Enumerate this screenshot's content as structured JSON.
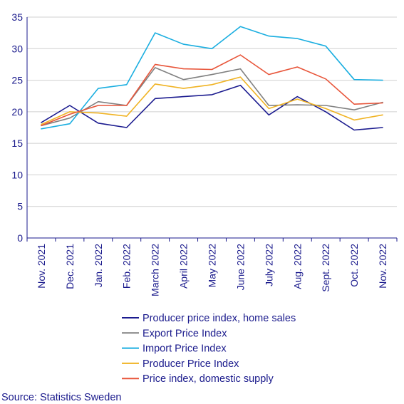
{
  "chart_data": {
    "type": "line",
    "title": "",
    "xlabel": "",
    "ylabel": "",
    "ylim": [
      0,
      35
    ],
    "yticks": [
      0,
      5,
      10,
      15,
      20,
      25,
      30,
      35
    ],
    "grid": true,
    "legend_position": "bottom",
    "categories": [
      "Nov. 2021",
      "Dec. 2021",
      "Jan. 2022",
      "Feb. 2022",
      "March 2022",
      "April 2022",
      "May 2022",
      "June 2022",
      "July 2022",
      "Aug. 2022",
      "Sept. 2022",
      "Oct. 2022",
      "Nov. 2022"
    ],
    "series": [
      {
        "name": "Producer price index, home sales",
        "color": "#1b1b8f",
        "values": [
          18.3,
          21.0,
          18.2,
          17.5,
          22.1,
          22.4,
          22.7,
          24.2,
          19.5,
          22.4,
          20.0,
          17.1,
          17.5
        ]
      },
      {
        "name": "Export Price Index",
        "color": "#808080",
        "values": [
          17.8,
          19.0,
          21.6,
          21.0,
          27.0,
          25.1,
          25.9,
          26.8,
          21.0,
          21.1,
          21.0,
          20.3,
          21.5
        ]
      },
      {
        "name": "Import Price Index",
        "color": "#1aaee0",
        "values": [
          17.3,
          18.1,
          23.7,
          24.3,
          32.5,
          30.7,
          30.0,
          33.5,
          32.0,
          31.6,
          30.4,
          25.1,
          25.0
        ]
      },
      {
        "name": "Producer Price Index",
        "color": "#f0b323",
        "values": [
          18.0,
          20.0,
          19.8,
          19.3,
          24.4,
          23.7,
          24.3,
          25.5,
          20.5,
          22.0,
          20.5,
          18.7,
          19.5
        ]
      },
      {
        "name": "Price index, domestic supply",
        "color": "#e8553a",
        "values": [
          17.8,
          19.6,
          21.0,
          21.0,
          27.5,
          26.8,
          26.7,
          29.0,
          25.9,
          27.1,
          25.2,
          21.2,
          21.4
        ]
      }
    ],
    "source": "Source: Statistics Sweden"
  }
}
